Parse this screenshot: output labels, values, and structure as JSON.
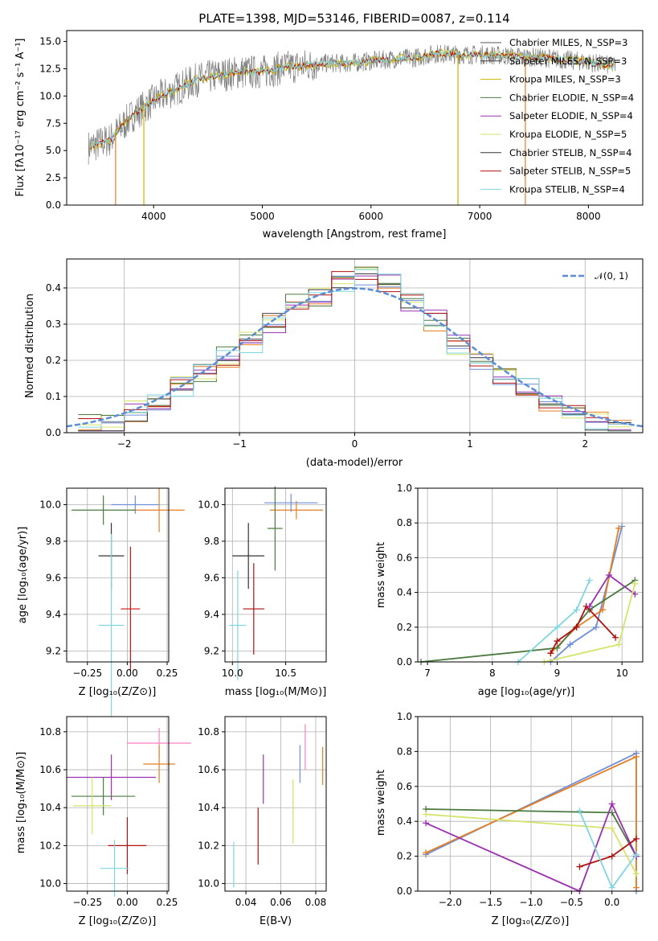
{
  "title": "PLATE=1398, MJD=53146, FIBERID=0087, z=0.114",
  "spectrum": {
    "xlabel": "wavelength [Angstrom, rest frame]",
    "ylabel": "Flux [fλ10⁻¹⁷ erg cm⁻² s⁻¹ A⁻¹]",
    "xticks": [
      "4000",
      "5000",
      "6000",
      "7000",
      "8000"
    ],
    "yticks": [
      "0.0",
      "2.5",
      "5.0",
      "7.5",
      "10.0",
      "12.5",
      "15.0"
    ],
    "legend": [
      {
        "label": "Chabrier MILES, N_SSP=3",
        "color": "#555555"
      },
      {
        "label": "Salpeter MILES, N_SSP=3",
        "color": "#444444"
      },
      {
        "label": "Kroupa MILES, N_SSP=3",
        "color": "#c9b400"
      },
      {
        "label": "Chabrier ELODIE, N_SSP=4",
        "color": "#4a7a3f"
      },
      {
        "label": "Salpeter ELODIE, N_SSP=4",
        "color": "#9b30b0"
      },
      {
        "label": "Kroupa ELODIE, N_SSP=5",
        "color": "#d5e36a"
      },
      {
        "label": "Chabrier STELIB, N_SSP=4",
        "color": "#333333"
      },
      {
        "label": "Salpeter STELIB, N_SSP=5",
        "color": "#b01010"
      },
      {
        "label": "Kroupa STELIB, N_SSP=4",
        "color": "#7fd6e0"
      }
    ]
  },
  "histogram": {
    "xlabel": "(data-model)/error",
    "ylabel": "Normed distribution",
    "xticks": [
      "−2",
      "−1",
      "0",
      "1",
      "2"
    ],
    "yticks": [
      "0.0",
      "0.1",
      "0.2",
      "0.3",
      "0.4"
    ],
    "legend": "𝒩(0, 1)"
  },
  "panels": {
    "age_vs_Z": {
      "xlabel": "Z [log₁₀(Z/Z⊙)]",
      "ylabel": "age  [log₁₀(age/yr)]",
      "xticks": [
        "−0.25",
        "0.00",
        "0.25"
      ],
      "yticks": [
        "9.2",
        "9.4",
        "9.6",
        "9.8",
        "10.0"
      ]
    },
    "age_vs_mass": {
      "xlabel": "mass [log₁₀(M/M⊙)]",
      "xticks": [
        "10.0",
        "10.5"
      ],
      "yticks": [
        "9.2",
        "9.4",
        "9.6",
        "9.8",
        "10.0"
      ]
    },
    "mw_vs_age": {
      "xlabel": "age  [log₁₀(age/yr)]",
      "ylabel": "mass weight",
      "xticks": [
        "7",
        "8",
        "9",
        "10"
      ],
      "yticks": [
        "0.0",
        "0.2",
        "0.4",
        "0.6",
        "0.8",
        "1.0"
      ]
    },
    "mass_vs_Z": {
      "xlabel": "Z [log₁₀(Z/Z⊙)]",
      "ylabel": "mass [log₁₀(M/M⊙)]",
      "xticks": [
        "−0.25",
        "0.00",
        "0.25"
      ],
      "yticks": [
        "10.0",
        "10.2",
        "10.4",
        "10.6",
        "10.8"
      ]
    },
    "mass_vs_ebv": {
      "xlabel": "E(B-V)",
      "xticks": [
        "0.04",
        "0.06",
        "0.08"
      ],
      "yticks": [
        "10.0",
        "10.2",
        "10.4",
        "10.6",
        "10.8"
      ]
    },
    "mw_vs_Z": {
      "xlabel": "Z [log₁₀(Z/Z⊙)]",
      "ylabel": "mass weight",
      "xticks": [
        "−2.0",
        "−1.5",
        "−1.0",
        "−0.5",
        "0.0"
      ],
      "yticks": [
        "0.0",
        "0.2",
        "0.4",
        "0.6",
        "0.8",
        "1.0"
      ]
    }
  },
  "chart_data": [
    {
      "type": "line",
      "title": "PLATE=1398, MJD=53146, FIBERID=0087, z=0.114",
      "xlim": [
        3200,
        8500
      ],
      "ylim": [
        0,
        16
      ],
      "x": [
        3400,
        3600,
        3800,
        4000,
        4200,
        4400,
        4600,
        4800,
        5000,
        5200,
        5400,
        5600,
        5800,
        6000,
        6200,
        6400,
        6600,
        6800,
        7000,
        7200,
        7400,
        7600,
        7800,
        8000,
        8200
      ],
      "y": [
        5.3,
        6.0,
        8.2,
        9.6,
        10.6,
        11.5,
        11.9,
        12.2,
        12.2,
        12.6,
        12.8,
        13.0,
        13.0,
        13.2,
        13.4,
        13.5,
        13.9,
        13.8,
        13.8,
        13.7,
        13.6,
        13.5,
        13.3,
        13.1,
        12.8
      ]
    },
    {
      "type": "bar",
      "xlim": [
        -2.5,
        2.5
      ],
      "ylim": [
        0,
        0.48
      ],
      "x": [
        -2.3,
        -2.1,
        -1.9,
        -1.7,
        -1.5,
        -1.3,
        -1.1,
        -0.9,
        -0.7,
        -0.5,
        -0.3,
        -0.1,
        0.1,
        0.3,
        0.5,
        0.7,
        0.9,
        1.1,
        1.3,
        1.5,
        1.7,
        1.9,
        2.1,
        2.3
      ],
      "values": [
        0.02,
        0.03,
        0.06,
        0.09,
        0.13,
        0.17,
        0.21,
        0.25,
        0.3,
        0.36,
        0.38,
        0.42,
        0.43,
        0.41,
        0.36,
        0.31,
        0.24,
        0.2,
        0.15,
        0.12,
        0.08,
        0.05,
        0.03,
        0.02
      ],
      "model": {
        "name": "𝒩(0, 1)",
        "mean": 0,
        "sigma": 1
      }
    },
    {
      "type": "scatter",
      "xlim": [
        -0.38,
        0.26
      ],
      "ylim": [
        9.14,
        10.09
      ],
      "points": [
        {
          "x": 0.2,
          "y": 9.97,
          "xerr": 0.16,
          "yerr": 0.12,
          "color": "#e67e22"
        },
        {
          "x": 0.05,
          "y": 10.0,
          "xerr": 0.15,
          "yerr": 0.05,
          "color": "#6f8fd8"
        },
        {
          "x": -0.15,
          "y": 9.97,
          "xerr": 0.2,
          "yerr": 0.08,
          "color": "#4a7a3f"
        },
        {
          "x": -0.1,
          "y": 9.72,
          "xerr": 0.08,
          "yerr": 0.18,
          "color": "#333333"
        },
        {
          "x": 0.02,
          "y": 9.43,
          "xerr": 0.06,
          "yerr": 0.34,
          "color": "#d01010"
        },
        {
          "x": -0.1,
          "y": 9.34,
          "xerr": 0.08,
          "yerr": 0.5,
          "color": "#7fd6e0"
        }
      ]
    },
    {
      "type": "scatter",
      "xlim": [
        9.93,
        10.88
      ],
      "ylim": [
        9.14,
        10.09
      ],
      "points": [
        {
          "x": 10.6,
          "y": 9.97,
          "xerr": 0.25,
          "yerr": 0.05,
          "color": "#e67e22"
        },
        {
          "x": 10.55,
          "y": 10.01,
          "xerr": 0.25,
          "yerr": 0.05,
          "color": "#6f8fd8"
        },
        {
          "x": 10.4,
          "y": 9.87,
          "xerr": 0.07,
          "yerr": 0.23,
          "color": "#4a7a3f"
        },
        {
          "x": 10.15,
          "y": 9.72,
          "xerr": 0.15,
          "yerr": 0.18,
          "color": "#333333"
        },
        {
          "x": 10.2,
          "y": 9.43,
          "xerr": 0.1,
          "yerr": 0.25,
          "color": "#b01010"
        },
        {
          "x": 10.05,
          "y": 9.34,
          "xerr": 0.08,
          "yerr": 0.3,
          "color": "#7fd6e0"
        }
      ]
    },
    {
      "type": "line",
      "xlim": [
        6.85,
        10.32
      ],
      "ylim": [
        0,
        1
      ],
      "series": [
        {
          "x": [
            8.9,
            9.2,
            9.6,
            10.0
          ],
          "y": [
            0.0,
            0.1,
            0.2,
            0.78
          ],
          "color": "#6f8fd8"
        },
        {
          "x": [
            8.9,
            9.3,
            9.7,
            9.95
          ],
          "y": [
            0.05,
            0.2,
            0.3,
            0.77
          ],
          "color": "#e67e22"
        },
        {
          "x": [
            6.9,
            9.0,
            9.5,
            10.2
          ],
          "y": [
            0.0,
            0.08,
            0.3,
            0.47
          ],
          "color": "#4a7a3f"
        },
        {
          "x": [
            8.9,
            9.0,
            9.3,
            9.45,
            9.9
          ],
          "y": [
            0.05,
            0.12,
            0.2,
            0.32,
            0.14
          ],
          "color": "#b01010"
        },
        {
          "x": [
            8.4,
            9.0,
            9.3,
            9.5
          ],
          "y": [
            0.0,
            0.2,
            0.3,
            0.47
          ],
          "color": "#7fd6e0"
        },
        {
          "x": [
            9.5,
            9.8,
            10.2
          ],
          "y": [
            0.32,
            0.5,
            0.39
          ],
          "color": "#9b30b0"
        },
        {
          "x": [
            8.8,
            9.95,
            10.2
          ],
          "y": [
            0.0,
            0.1,
            0.45
          ],
          "color": "#d5e36a"
        }
      ]
    },
    {
      "type": "scatter",
      "xlim": [
        -0.38,
        0.26
      ],
      "ylim": [
        9.96,
        10.88
      ],
      "points": [
        {
          "x": 0.2,
          "y": 10.74,
          "xerr": 0.2,
          "yerr": 0.08,
          "color": "#ff7fbf"
        },
        {
          "x": 0.2,
          "y": 10.63,
          "xerr": 0.1,
          "yerr": 0.1,
          "color": "#e67e22"
        },
        {
          "x": -0.1,
          "y": 10.56,
          "xerr": 0.28,
          "yerr": 0.12,
          "color": "#9b30b0"
        },
        {
          "x": -0.15,
          "y": 10.46,
          "xerr": 0.2,
          "yerr": 0.1,
          "color": "#4a7a3f"
        },
        {
          "x": -0.22,
          "y": 10.41,
          "xerr": 0.12,
          "yerr": 0.15,
          "color": "#d5e36a"
        },
        {
          "x": 0.0,
          "y": 10.2,
          "xerr": 0.12,
          "yerr": 0.15,
          "color": "#b01010"
        },
        {
          "x": -0.08,
          "y": 10.08,
          "xerr": 0.09,
          "yerr": 0.15,
          "color": "#7fd6e0"
        }
      ]
    },
    {
      "type": "scatter",
      "xlim": [
        0.028,
        0.086
      ],
      "ylim": [
        9.96,
        10.88
      ],
      "points": [
        {
          "x": 0.033,
          "y": 10.1,
          "yerr": 0.12,
          "color": "#7fd6e0"
        },
        {
          "x": 0.047,
          "y": 10.25,
          "yerr": 0.15,
          "color": "#b01010"
        },
        {
          "x": 0.05,
          "y": 10.55,
          "yerr": 0.13,
          "color": "#9b30b0"
        },
        {
          "x": 0.067,
          "y": 10.38,
          "yerr": 0.17,
          "color": "#d5e36a"
        },
        {
          "x": 0.071,
          "y": 10.63,
          "yerr": 0.1,
          "color": "#6f8fd8"
        },
        {
          "x": 0.074,
          "y": 10.72,
          "yerr": 0.12,
          "color": "#ff7fbf"
        },
        {
          "x": 0.084,
          "y": 10.62,
          "yerr": 0.1,
          "color": "#e67e22"
        }
      ]
    },
    {
      "type": "line",
      "xlim": [
        -2.4,
        0.38
      ],
      "ylim": [
        0,
        1
      ],
      "series": [
        {
          "x": [
            -2.3,
            0.3,
            0.3
          ],
          "y": [
            0.21,
            0.79,
            0.0
          ],
          "color": "#6f8fd8"
        },
        {
          "x": [
            -2.3,
            0.3,
            0.3
          ],
          "y": [
            0.22,
            0.77,
            0.02
          ],
          "color": "#e67e22"
        },
        {
          "x": [
            -2.3,
            0.0,
            0.3
          ],
          "y": [
            0.47,
            0.45,
            0.2
          ],
          "color": "#4a7a3f"
        },
        {
          "x": [
            -2.3,
            0.0,
            0.3
          ],
          "y": [
            0.44,
            0.36,
            0.1
          ],
          "color": "#d5e36a"
        },
        {
          "x": [
            -2.3,
            -0.4,
            0.0,
            0.3
          ],
          "y": [
            0.39,
            0.0,
            0.5,
            0.2
          ],
          "color": "#9b30b0"
        },
        {
          "x": [
            -0.4,
            0.0,
            0.3
          ],
          "y": [
            0.14,
            0.2,
            0.3
          ],
          "color": "#b01010"
        },
        {
          "x": [
            -0.4,
            0.0,
            0.3
          ],
          "y": [
            0.46,
            0.02,
            0.21
          ],
          "color": "#7fd6e0"
        }
      ]
    }
  ]
}
